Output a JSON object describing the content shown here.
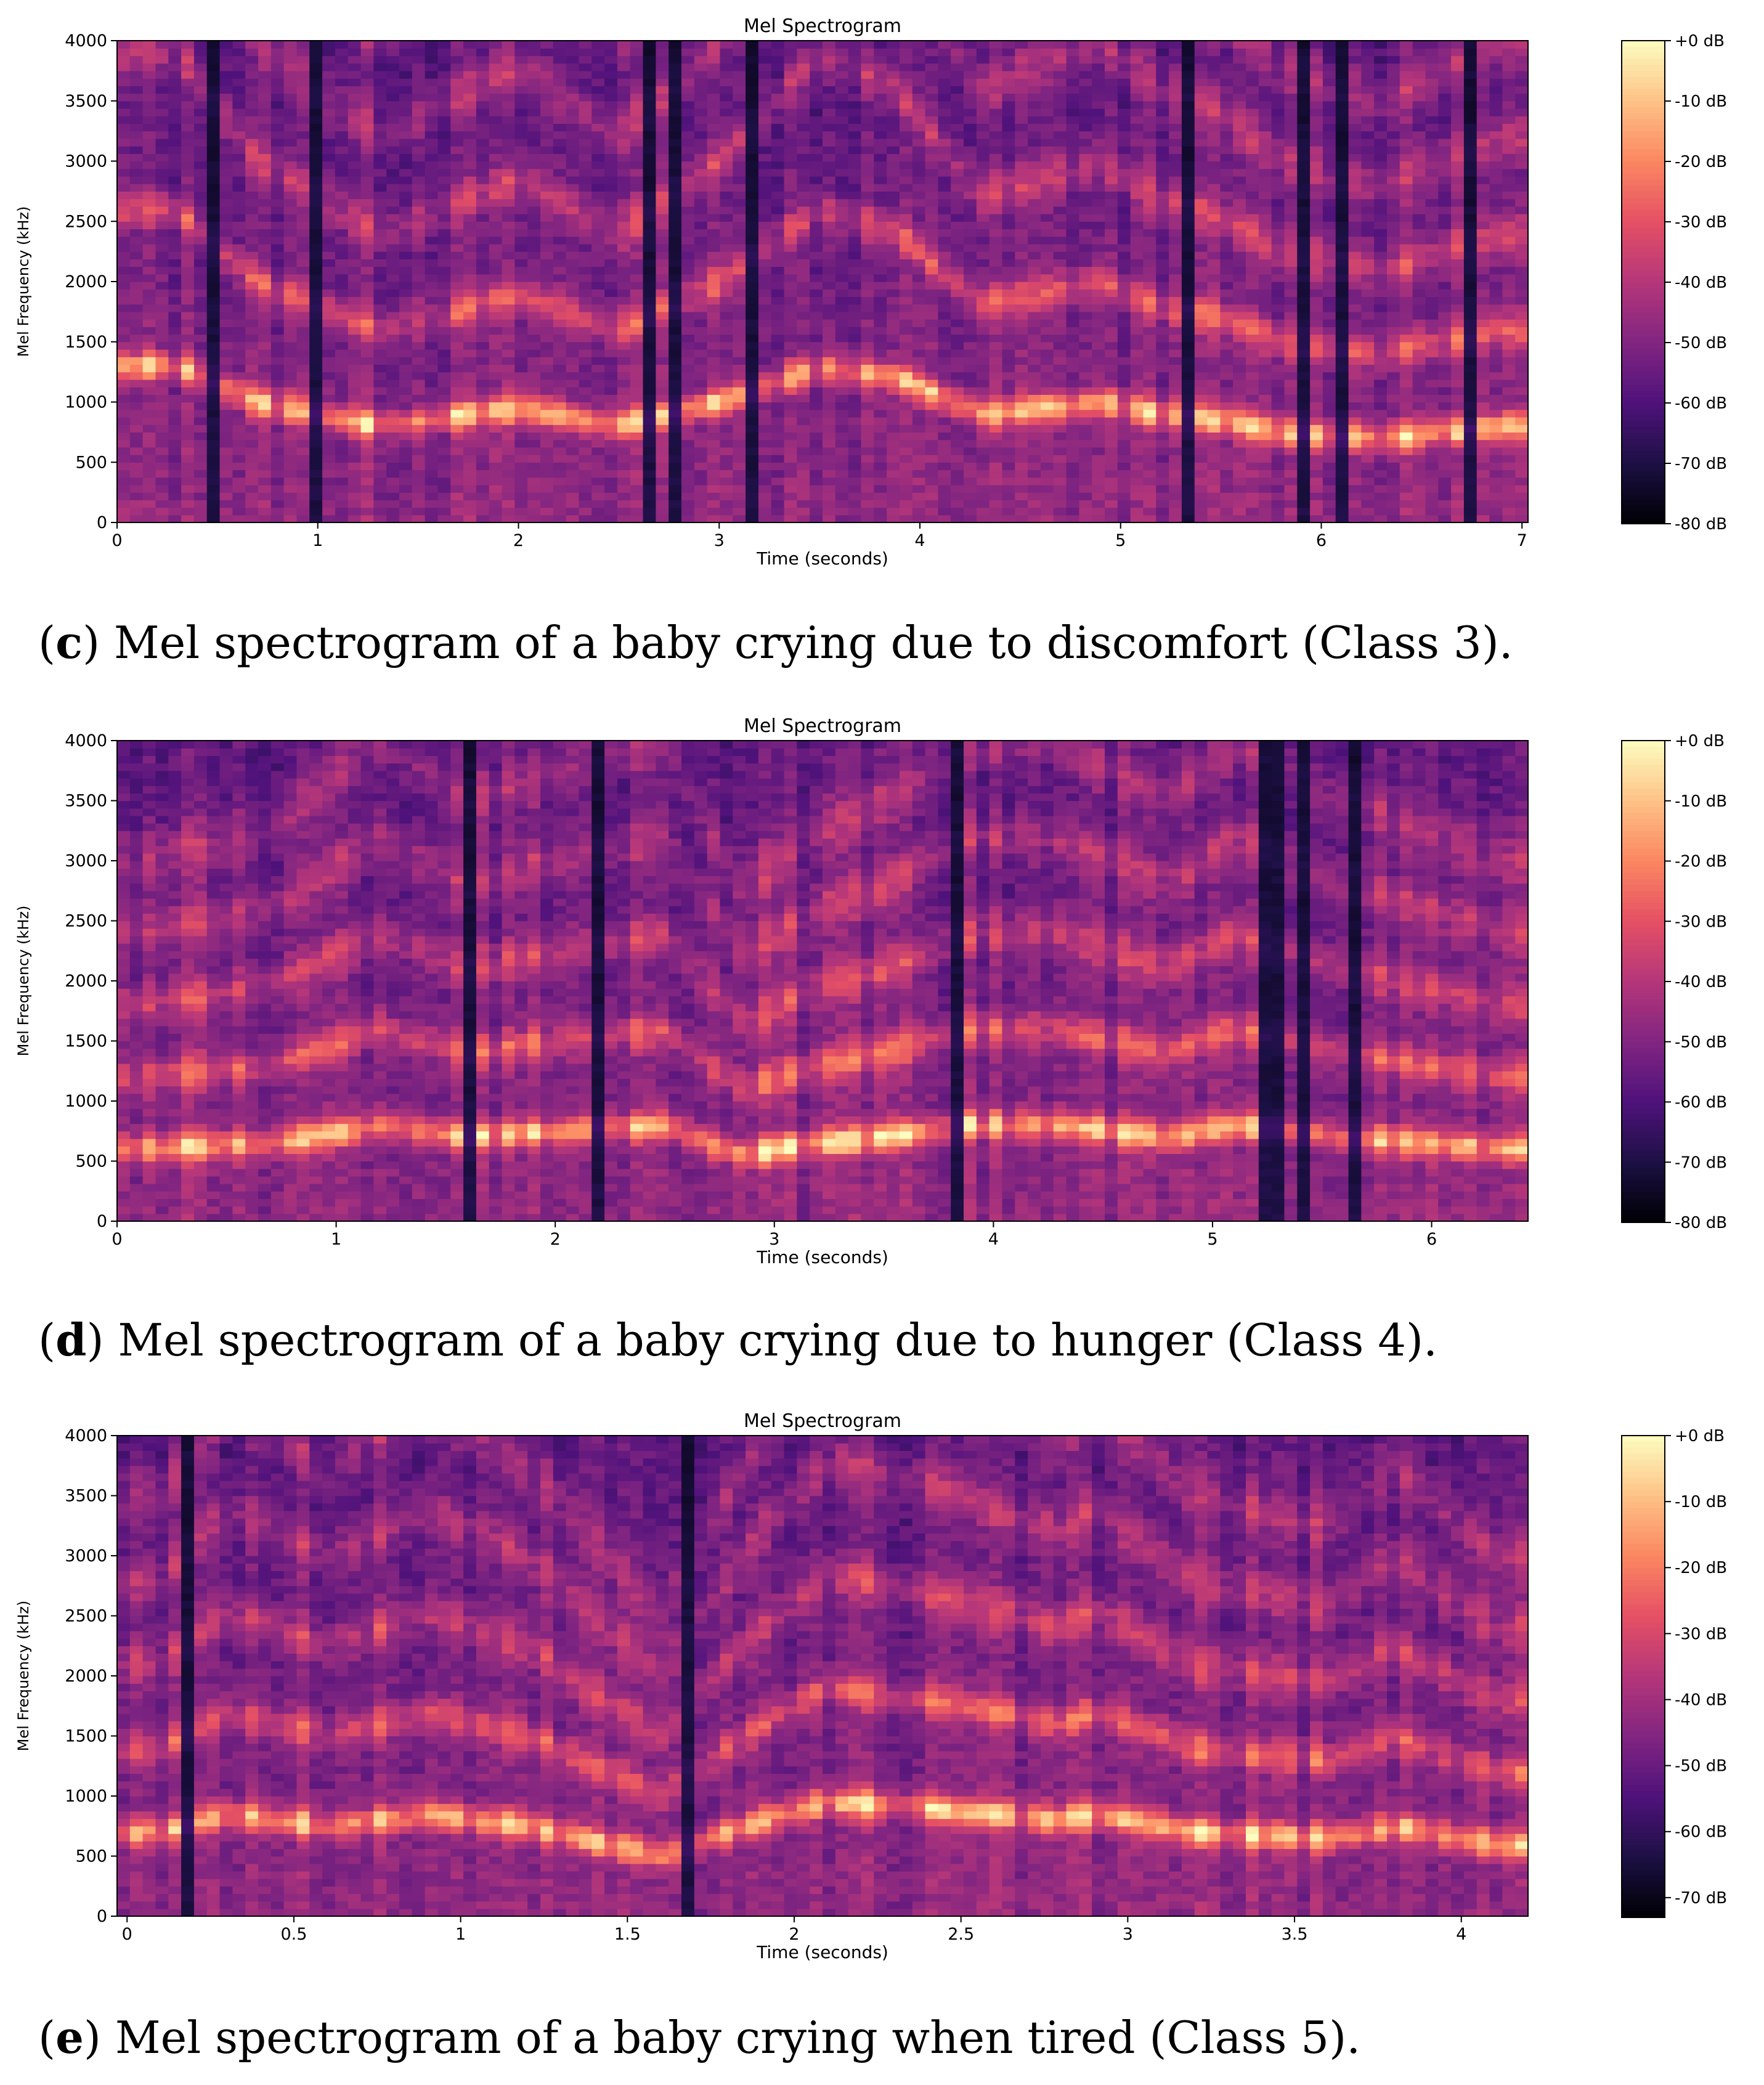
{
  "colors": {
    "colormap": "magma",
    "colormap_stops": [
      "#000004",
      "#1c1044",
      "#4f127b",
      "#812581",
      "#b5367a",
      "#e55064",
      "#fb8761",
      "#fec287",
      "#fcfdbf"
    ]
  },
  "panels": [
    {
      "caption_letter": "c",
      "caption_text": "Mel spectrogram of a baby crying due to discomfort (Class 3)."
    },
    {
      "caption_letter": "d",
      "caption_text": "Mel spectrogram of a baby crying due to hunger (Class 4)."
    },
    {
      "caption_letter": "e",
      "caption_text": "Mel spectrogram of a baby crying when tired (Class 5)."
    }
  ],
  "chart_data": [
    {
      "type": "heatmap",
      "title": "Mel Spectrogram",
      "xlabel": "Time (seconds)",
      "ylabel": "Mel Frequency (kHz)",
      "xlim": [
        0,
        7.03
      ],
      "ylim": [
        0,
        4000
      ],
      "xticks": [
        0,
        1,
        2,
        3,
        4,
        5,
        6,
        7
      ],
      "xtick_labels": [
        "0",
        "1",
        "2",
        "3",
        "4",
        "5",
        "6",
        "7"
      ],
      "yticks": [
        0,
        500,
        1000,
        1500,
        2000,
        2500,
        3000,
        3500,
        4000
      ],
      "ytick_labels": [
        "0",
        "500",
        "1000",
        "1500",
        "2000",
        "2500",
        "3000",
        "3500",
        "4000"
      ],
      "colorbar": {
        "range_db": [
          -80,
          0
        ],
        "ticks": [
          0,
          -10,
          -20,
          -30,
          -40,
          -50,
          -60,
          -70,
          -80
        ],
        "tick_labels": [
          "+0 dB",
          "-10 dB",
          "-20 dB",
          "-30 dB",
          "-40 dB",
          "-50 dB",
          "-60 dB",
          "-70 dB",
          "-80 dB"
        ]
      },
      "approx_pitch_contour_hz": {
        "t": [
          0.3,
          0.7,
          1.0,
          1.3,
          2.0,
          2.5,
          3.0,
          3.5,
          3.9,
          4.3,
          4.9,
          5.2,
          5.5,
          5.8,
          6.3,
          6.6,
          6.9
        ],
        "f0": [
          1300,
          1000,
          900,
          800,
          950,
          800,
          1000,
          1300,
          1200,
          900,
          1000,
          900,
          850,
          750,
          700,
          750,
          800
        ],
        "harmonic_2": [
          1900,
          1600,
          1500,
          1400,
          1950,
          1700,
          2000,
          2600,
          2400,
          1800,
          2050,
          1800,
          1750,
          1500,
          1450,
          1600,
          1650
        ]
      }
    },
    {
      "type": "heatmap",
      "title": "Mel Spectrogram",
      "xlabel": "Time (seconds)",
      "ylabel": "Mel Frequency (kHz)",
      "xlim": [
        0,
        6.44
      ],
      "ylim": [
        0,
        4000
      ],
      "xticks": [
        0,
        1,
        2,
        3,
        4,
        5,
        6
      ],
      "xtick_labels": [
        "0",
        "1",
        "2",
        "3",
        "4",
        "5",
        "6"
      ],
      "yticks": [
        0,
        500,
        1000,
        1500,
        2000,
        2500,
        3000,
        3500,
        4000
      ],
      "ytick_labels": [
        "0",
        "500",
        "1000",
        "1500",
        "2000",
        "2500",
        "3000",
        "3500",
        "4000"
      ],
      "colorbar": {
        "range_db": [
          -80,
          0
        ],
        "ticks": [
          0,
          -10,
          -20,
          -30,
          -40,
          -50,
          -60,
          -70,
          -80
        ],
        "tick_labels": [
          "+0 dB",
          "-10 dB",
          "-20 dB",
          "-30 dB",
          "-40 dB",
          "-50 dB",
          "-60 dB",
          "-70 dB",
          "-80 dB"
        ]
      },
      "approx_pitch_contour_hz": {
        "t": [
          0.1,
          0.7,
          1.2,
          1.6,
          2.0,
          2.5,
          2.85,
          3.2,
          3.5,
          3.9,
          4.3,
          4.8,
          5.1,
          5.6,
          6.0,
          6.3
        ],
        "f0": [
          600,
          650,
          800,
          700,
          750,
          800,
          550,
          650,
          700,
          800,
          800,
          700,
          800,
          700,
          650,
          600
        ],
        "harmonic_2": [
          1100,
          1350,
          1600,
          1550,
          1500,
          1600,
          1100,
          1300,
          1400,
          1650,
          1650,
          1450,
          1650,
          1500,
          1400,
          1200
        ]
      }
    },
    {
      "type": "heatmap",
      "title": "Mel Spectrogram",
      "xlabel": "Time (seconds)",
      "ylabel": "Mel Frequency (kHz)",
      "xlim": [
        -0.03,
        4.2
      ],
      "ylim": [
        0,
        4000
      ],
      "xticks": [
        0,
        0.5,
        1,
        1.5,
        2,
        2.5,
        3,
        3.5,
        4
      ],
      "xtick_labels": [
        "0",
        "0.5",
        "1",
        "1.5",
        "2",
        "2.5",
        "3",
        "3.5",
        "4"
      ],
      "yticks": [
        0,
        500,
        1000,
        1500,
        2000,
        2500,
        3000,
        3500,
        4000
      ],
      "ytick_labels": [
        "0",
        "500",
        "1000",
        "1500",
        "2000",
        "2500",
        "3000",
        "3500",
        "4000"
      ],
      "colorbar": {
        "range_db": [
          -73,
          0
        ],
        "ticks": [
          0,
          -10,
          -20,
          -30,
          -40,
          -50,
          -60,
          -70
        ],
        "tick_labels": [
          "+0 dB",
          "-10 dB",
          "-20 dB",
          "-30 dB",
          "-40 dB",
          "-50 dB",
          "-60 dB",
          "-70 dB"
        ]
      },
      "approx_pitch_contour_hz": {
        "t": [
          0.1,
          0.3,
          0.6,
          0.9,
          1.2,
          1.6,
          1.9,
          2.1,
          2.4,
          2.8,
          2.9,
          3.2,
          3.6,
          3.8,
          4.1
        ],
        "f0": [
          700,
          850,
          750,
          850,
          750,
          500,
          800,
          950,
          900,
          800,
          850,
          700,
          650,
          750,
          600
        ],
        "harmonic_2": [
          1300,
          1550,
          1400,
          1700,
          1500,
          1200,
          1800,
          1900,
          1850,
          1600,
          1700,
          1400,
          1300,
          1500,
          1200
        ]
      }
    }
  ]
}
